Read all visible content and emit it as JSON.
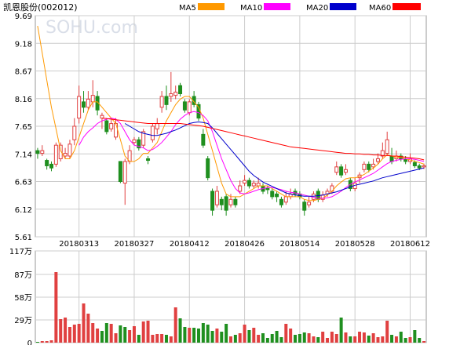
{
  "header": {
    "ticker": "凯恩股份(002012)"
  },
  "watermark": "SOHU.com",
  "legend": [
    {
      "label": "MA5",
      "color": "#ff9900"
    },
    {
      "label": "MA10",
      "color": "#ff00ff"
    },
    {
      "label": "MA20",
      "color": "#0000cc"
    },
    {
      "label": "MA60",
      "color": "#ff0000"
    }
  ],
  "colors": {
    "up": "#e04040",
    "down": "#1f8f1f",
    "grid": "#cccccc",
    "frame": "#999999"
  },
  "chart_data": [
    {
      "type": "candlestick",
      "title": "",
      "y_ticks": [
        "9.69",
        "9.18",
        "8.67",
        "8.16",
        "7.65",
        "7.14",
        "6.63",
        "6.12",
        "5.61"
      ],
      "ylim": [
        5.61,
        9.69
      ],
      "x_ticks": [
        "20180313",
        "20180327",
        "20180412",
        "20180426",
        "20180514",
        "20180528",
        "20180612"
      ],
      "x_tick_positions": [
        9,
        21,
        33,
        45,
        57,
        69,
        81
      ],
      "n": 85,
      "candles": [
        [
          7.2,
          7.15,
          7.25,
          7.05
        ],
        [
          7.15,
          7.2,
          7.3,
          7.1
        ],
        [
          7.02,
          6.92,
          7.05,
          6.85
        ],
        [
          6.95,
          6.88,
          7.0,
          6.82
        ],
        [
          6.95,
          7.3,
          7.35,
          6.9
        ],
        [
          7.05,
          7.3,
          7.35,
          7.0
        ],
        [
          7.1,
          7.15,
          7.25,
          7.05
        ],
        [
          7.1,
          7.32,
          7.4,
          7.05
        ],
        [
          7.4,
          7.65,
          7.8,
          7.3
        ],
        [
          7.8,
          8.2,
          8.4,
          7.7
        ],
        [
          8.1,
          8.0,
          8.3,
          7.9
        ],
        [
          8.0,
          8.15,
          8.3,
          7.95
        ],
        [
          8.1,
          8.22,
          8.5,
          8.0
        ],
        [
          8.2,
          7.95,
          8.3,
          7.85
        ],
        [
          7.8,
          7.85,
          7.9,
          7.6
        ],
        [
          7.75,
          7.55,
          7.8,
          7.5
        ],
        [
          7.6,
          7.7,
          7.8,
          7.55
        ],
        [
          7.45,
          7.7,
          7.8,
          7.4
        ],
        [
          7.0,
          6.63,
          7.0,
          6.6
        ],
        [
          6.6,
          7.0,
          7.05,
          6.2
        ],
        [
          7.0,
          7.2,
          7.3,
          6.95
        ],
        [
          7.35,
          7.4,
          7.45,
          7.3
        ],
        [
          7.4,
          7.25,
          7.45,
          7.2
        ],
        [
          7.3,
          7.55,
          7.6,
          7.25
        ],
        [
          7.05,
          7.02,
          7.1,
          6.95
        ],
        [
          7.4,
          7.65,
          7.7,
          7.35
        ],
        [
          7.6,
          7.7,
          7.8,
          7.5
        ],
        [
          8.0,
          8.2,
          8.3,
          7.9
        ],
        [
          8.2,
          8.05,
          8.4,
          7.95
        ],
        [
          8.2,
          8.25,
          8.65,
          8.1
        ],
        [
          8.22,
          8.28,
          8.4,
          8.15
        ],
        [
          8.4,
          8.25,
          8.45,
          8.2
        ],
        [
          8.1,
          7.95,
          8.15,
          7.9
        ],
        [
          7.9,
          8.1,
          8.15,
          7.85
        ],
        [
          8.2,
          8.05,
          8.3,
          8.0
        ],
        [
          8.05,
          7.8,
          8.1,
          7.75
        ],
        [
          7.5,
          7.3,
          7.6,
          7.25
        ],
        [
          7.05,
          6.7,
          7.1,
          6.65
        ],
        [
          6.45,
          6.1,
          6.5,
          6.0
        ],
        [
          6.2,
          6.45,
          6.55,
          6.15
        ],
        [
          6.3,
          6.2,
          6.35,
          6.1
        ],
        [
          6.35,
          6.1,
          6.4,
          6.0
        ],
        [
          6.2,
          6.3,
          6.4,
          6.15
        ],
        [
          6.3,
          6.2,
          6.35,
          6.15
        ],
        [
          6.45,
          6.55,
          6.65,
          6.4
        ],
        [
          6.6,
          6.65,
          6.75,
          6.55
        ],
        [
          6.65,
          6.55,
          6.7,
          6.5
        ],
        [
          6.55,
          6.6,
          6.65,
          6.5
        ],
        [
          6.55,
          6.6,
          6.7,
          6.5
        ],
        [
          6.55,
          6.45,
          6.6,
          6.4
        ],
        [
          6.5,
          6.48,
          6.55,
          6.4
        ],
        [
          6.45,
          6.35,
          6.5,
          6.3
        ],
        [
          6.4,
          6.35,
          6.45,
          6.25
        ],
        [
          6.3,
          6.2,
          6.35,
          6.15
        ],
        [
          6.25,
          6.35,
          6.45,
          6.2
        ],
        [
          6.35,
          6.4,
          6.5,
          6.3
        ],
        [
          6.45,
          6.4,
          6.5,
          6.35
        ],
        [
          6.4,
          6.35,
          6.45,
          6.3
        ],
        [
          6.25,
          6.1,
          6.3,
          6.0
        ],
        [
          6.2,
          6.25,
          6.35,
          6.15
        ],
        [
          6.3,
          6.4,
          6.45,
          6.25
        ],
        [
          6.45,
          6.3,
          6.5,
          6.25
        ],
        [
          6.3,
          6.38,
          6.45,
          6.25
        ],
        [
          6.4,
          6.45,
          6.5,
          6.35
        ],
        [
          6.45,
          6.55,
          6.6,
          6.4
        ],
        [
          6.8,
          6.9,
          7.0,
          6.75
        ],
        [
          6.9,
          6.75,
          6.95,
          6.7
        ],
        [
          6.8,
          6.85,
          6.95,
          6.75
        ],
        [
          6.65,
          6.5,
          6.7,
          6.45
        ],
        [
          6.5,
          6.6,
          6.7,
          6.45
        ],
        [
          6.7,
          6.75,
          6.8,
          6.6
        ],
        [
          6.85,
          6.95,
          7.0,
          6.8
        ],
        [
          6.95,
          6.85,
          7.0,
          6.8
        ],
        [
          6.9,
          6.95,
          7.05,
          6.85
        ],
        [
          7.0,
          7.05,
          7.15,
          6.95
        ],
        [
          7.1,
          7.2,
          7.35,
          7.05
        ],
        [
          7.15,
          7.4,
          7.55,
          7.1
        ],
        [
          7.1,
          7.0,
          7.25,
          6.95
        ],
        [
          7.05,
          7.1,
          7.2,
          7.0
        ],
        [
          7.1,
          7.05,
          7.15,
          7.0
        ],
        [
          7.05,
          7.0,
          7.1,
          6.95
        ],
        [
          7.0,
          7.05,
          7.15,
          6.95
        ],
        [
          6.98,
          6.92,
          7.02,
          6.88
        ],
        [
          6.92,
          6.88,
          6.96,
          6.84
        ],
        [
          6.9,
          6.92,
          6.96,
          6.86
        ]
      ],
      "ma": {
        "MA5": [
          9.5,
          9.0,
          8.5,
          8.0,
          7.6,
          7.2,
          7.05,
          7.05,
          7.2,
          7.45,
          7.7,
          7.95,
          8.1,
          8.1,
          8.0,
          7.9,
          7.8,
          7.7,
          7.4,
          7.1,
          7.0,
          7.0,
          7.05,
          7.15,
          7.15,
          7.25,
          7.35,
          7.55,
          7.75,
          7.9,
          8.05,
          8.15,
          8.2,
          8.2,
          8.1,
          8.0,
          7.8,
          7.5,
          7.2,
          6.9,
          6.6,
          6.4,
          6.35,
          6.35,
          6.35,
          6.4,
          6.45,
          6.5,
          6.55,
          6.55,
          6.55,
          6.5,
          6.45,
          6.4,
          6.35,
          6.35,
          6.35,
          6.35,
          6.3,
          6.28,
          6.28,
          6.3,
          6.32,
          6.38,
          6.45,
          6.55,
          6.62,
          6.68,
          6.7,
          6.7,
          6.72,
          6.76,
          6.82,
          6.88,
          6.95,
          7.05,
          7.12,
          7.1,
          7.08,
          7.08,
          7.05,
          7.03,
          7.0,
          6.98,
          6.95
        ],
        "MA10": [
          null,
          null,
          null,
          null,
          null,
          null,
          null,
          null,
          null,
          7.3,
          7.45,
          7.55,
          7.62,
          7.7,
          7.75,
          7.78,
          7.8,
          7.78,
          7.7,
          7.55,
          7.4,
          7.3,
          7.28,
          7.25,
          7.2,
          7.22,
          7.28,
          7.35,
          7.45,
          7.55,
          7.68,
          7.78,
          7.85,
          7.9,
          7.92,
          7.9,
          7.85,
          7.75,
          7.55,
          7.3,
          7.05,
          6.85,
          6.65,
          6.5,
          6.42,
          6.4,
          6.42,
          6.45,
          6.48,
          6.5,
          6.52,
          6.52,
          6.5,
          6.48,
          6.45,
          6.43,
          6.42,
          6.4,
          6.38,
          6.36,
          6.34,
          6.32,
          6.32,
          6.33,
          6.35,
          6.4,
          6.45,
          6.52,
          6.58,
          6.62,
          6.66,
          6.7,
          6.74,
          6.78,
          6.84,
          6.9,
          6.96,
          7.0,
          7.02,
          7.04,
          7.05,
          7.05,
          7.04,
          7.02,
          7.0
        ],
        "MA20": [
          null,
          null,
          null,
          null,
          null,
          null,
          null,
          null,
          null,
          null,
          null,
          null,
          null,
          null,
          null,
          null,
          null,
          null,
          null,
          7.7,
          7.65,
          7.6,
          7.55,
          7.52,
          7.5,
          7.48,
          7.48,
          7.5,
          7.52,
          7.55,
          7.58,
          7.62,
          7.66,
          7.7,
          7.72,
          7.73,
          7.72,
          7.7,
          7.62,
          7.52,
          7.42,
          7.32,
          7.22,
          7.12,
          7.02,
          6.92,
          6.82,
          6.74,
          6.68,
          6.62,
          6.58,
          6.54,
          6.5,
          6.46,
          6.42,
          6.4,
          6.38,
          6.37,
          6.36,
          6.36,
          6.36,
          6.37,
          6.38,
          6.4,
          6.42,
          6.44,
          6.47,
          6.5,
          6.53,
          6.56,
          6.58,
          6.6,
          6.62,
          6.64,
          6.67,
          6.7,
          6.72,
          6.74,
          6.76,
          6.78,
          6.8,
          6.82,
          6.84,
          6.86,
          6.88
        ],
        "MA60": [
          null,
          null,
          null,
          null,
          null,
          null,
          null,
          null,
          null,
          null,
          null,
          null,
          null,
          null,
          7.8,
          7.79,
          7.78,
          7.77,
          7.76,
          7.75,
          7.74,
          7.73,
          7.72,
          7.71,
          7.7,
          7.7,
          7.7,
          7.7,
          7.7,
          7.7,
          7.7,
          7.7,
          7.69,
          7.68,
          7.67,
          7.66,
          7.65,
          7.63,
          7.61,
          7.59,
          7.57,
          7.55,
          7.53,
          7.51,
          7.49,
          7.47,
          7.45,
          7.43,
          7.41,
          7.39,
          7.37,
          7.35,
          7.33,
          7.31,
          7.29,
          7.27,
          7.26,
          7.25,
          7.24,
          7.23,
          7.22,
          7.21,
          7.2,
          7.19,
          7.18,
          7.17,
          7.16,
          7.15,
          7.15,
          7.14,
          7.14,
          7.13,
          7.13,
          7.12,
          7.12,
          7.11,
          7.11,
          7.1,
          7.1,
          7.09,
          7.08,
          7.07,
          7.06,
          7.05,
          7.03
        ]
      }
    },
    {
      "type": "bar",
      "title": "",
      "unit": "万",
      "y_ticks": [
        "117万",
        "87万",
        "58万",
        "29万",
        "0"
      ],
      "ylim": [
        0,
        117
      ],
      "volumes": [
        1,
        2,
        2,
        3,
        90,
        30,
        32,
        20,
        23,
        24,
        50,
        37,
        25,
        18,
        15,
        25,
        24,
        12,
        22,
        20,
        16,
        21,
        10,
        27,
        28,
        10,
        11,
        11,
        10,
        8,
        45,
        31,
        20,
        19,
        19,
        18,
        25,
        23,
        15,
        18,
        14,
        24,
        8,
        10,
        12,
        23,
        16,
        19,
        10,
        12,
        6,
        11,
        15,
        7,
        24,
        18,
        10,
        11,
        13,
        12,
        8,
        7,
        14,
        6,
        14,
        11,
        32,
        13,
        8,
        8,
        14,
        13,
        9,
        12,
        7,
        8,
        28,
        10,
        8,
        14,
        6,
        7,
        16,
        6,
        2
      ],
      "up": [
        false,
        true,
        true,
        true,
        true,
        true,
        true,
        true,
        true,
        true,
        true,
        true,
        true,
        true,
        false,
        false,
        true,
        true,
        false,
        false,
        true,
        true,
        false,
        true,
        true,
        true,
        true,
        true,
        false,
        true,
        true,
        false,
        false,
        true,
        false,
        false,
        false,
        false,
        false,
        true,
        false,
        false,
        true,
        false,
        true,
        true,
        false,
        true,
        true,
        false,
        false,
        false,
        false,
        false,
        true,
        true,
        false,
        false,
        false,
        true,
        true,
        false,
        true,
        true,
        true,
        true,
        false,
        true,
        false,
        true,
        true,
        true,
        false,
        true,
        true,
        true,
        true,
        false,
        true,
        false,
        false,
        true,
        false,
        false,
        true
      ]
    }
  ]
}
